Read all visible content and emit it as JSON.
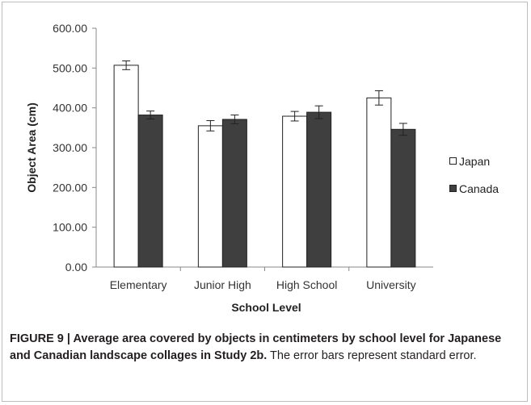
{
  "chart_data": {
    "type": "bar",
    "categories": [
      "Elementary",
      "Junior High",
      "High School",
      "University"
    ],
    "series": [
      {
        "name": "Japan",
        "values": [
          507,
          355,
          379,
          425
        ],
        "errors": [
          11,
          13,
          12,
          18
        ],
        "color": "#ffffff"
      },
      {
        "name": "Canada",
        "values": [
          382,
          371,
          389,
          346
        ],
        "errors": [
          10,
          11,
          16,
          15
        ],
        "color": "#3f3f3f"
      }
    ],
    "xlabel": "School Level",
    "ylabel": "Object Area (cm)",
    "ylim": [
      0,
      600
    ],
    "yticks": [
      "0.00",
      "100.00",
      "200.00",
      "300.00",
      "400.00",
      "500.00",
      "600.00"
    ],
    "legend_position": "right",
    "grid": false
  },
  "caption": {
    "bold": "FIGURE 9 | Average area covered by objects in centimeters by school level for Japanese and Canadian landscape collages in Study 2b.",
    "normal": " The error bars represent standard error."
  }
}
